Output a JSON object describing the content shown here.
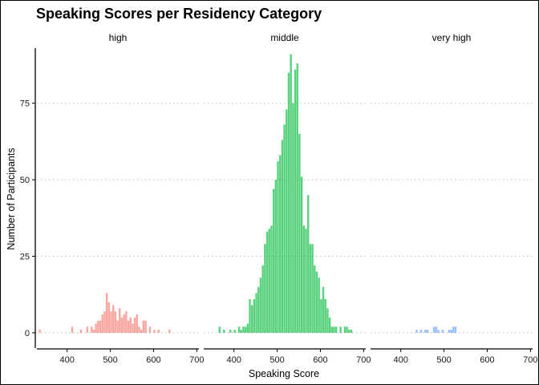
{
  "chart_data": {
    "type": "bar",
    "title": "Speaking Scores per Residency Category",
    "xlabel": "Speaking Score",
    "ylabel": "Number of Participants",
    "xlim": [
      330,
      705
    ],
    "ylim": [
      -5,
      93
    ],
    "x_ticks": [
      400,
      500,
      600,
      700
    ],
    "y_ticks": [
      0,
      25,
      50,
      75
    ],
    "grid": "horizontal dotted",
    "bin_width": 5,
    "panels": [
      {
        "name": "high",
        "color": "#F8766D",
        "bins": [
          [
            337,
            1
          ],
          [
            412,
            2
          ],
          [
            432,
            1
          ],
          [
            447,
            2
          ],
          [
            457,
            2
          ],
          [
            462,
            1
          ],
          [
            467,
            3
          ],
          [
            472,
            4
          ],
          [
            477,
            4
          ],
          [
            482,
            6
          ],
          [
            487,
            7
          ],
          [
            492,
            13
          ],
          [
            497,
            10
          ],
          [
            502,
            7
          ],
          [
            507,
            9
          ],
          [
            512,
            7
          ],
          [
            517,
            4
          ],
          [
            522,
            8
          ],
          [
            527,
            5
          ],
          [
            532,
            6
          ],
          [
            537,
            7
          ],
          [
            542,
            4
          ],
          [
            547,
            5
          ],
          [
            552,
            3
          ],
          [
            557,
            5
          ],
          [
            562,
            6
          ],
          [
            567,
            2
          ],
          [
            572,
            1
          ],
          [
            577,
            4
          ],
          [
            582,
            4
          ],
          [
            592,
            2
          ],
          [
            602,
            1
          ],
          [
            612,
            1
          ],
          [
            637,
            1
          ]
        ]
      },
      {
        "name": "middle",
        "color": "#00BA38",
        "bins": [
          [
            367,
            2
          ],
          [
            377,
            1
          ],
          [
            392,
            1
          ],
          [
            402,
            1
          ],
          [
            412,
            2
          ],
          [
            417,
            1
          ],
          [
            422,
            2
          ],
          [
            427,
            2
          ],
          [
            432,
            3
          ],
          [
            437,
            11
          ],
          [
            442,
            9
          ],
          [
            447,
            11
          ],
          [
            452,
            13
          ],
          [
            457,
            15
          ],
          [
            462,
            18
          ],
          [
            467,
            22
          ],
          [
            472,
            29
          ],
          [
            477,
            33
          ],
          [
            482,
            34
          ],
          [
            487,
            35
          ],
          [
            492,
            47
          ],
          [
            497,
            50
          ],
          [
            502,
            56
          ],
          [
            507,
            58
          ],
          [
            512,
            63
          ],
          [
            517,
            68
          ],
          [
            522,
            73
          ],
          [
            527,
            85
          ],
          [
            532,
            91
          ],
          [
            537,
            75
          ],
          [
            542,
            86
          ],
          [
            547,
            88
          ],
          [
            552,
            65
          ],
          [
            557,
            51
          ],
          [
            562,
            35
          ],
          [
            567,
            34
          ],
          [
            572,
            45
          ],
          [
            577,
            29
          ],
          [
            582,
            29
          ],
          [
            587,
            22
          ],
          [
            592,
            20
          ],
          [
            597,
            18
          ],
          [
            602,
            11
          ],
          [
            607,
            15
          ],
          [
            612,
            11
          ],
          [
            617,
            8
          ],
          [
            622,
            5
          ],
          [
            627,
            2
          ],
          [
            632,
            2
          ],
          [
            637,
            2
          ],
          [
            647,
            2
          ],
          [
            657,
            2
          ],
          [
            662,
            2
          ],
          [
            667,
            1
          ],
          [
            672,
            1
          ]
        ]
      },
      {
        "name": "very high",
        "color": "#619CFF",
        "bins": [
          [
            437,
            1
          ],
          [
            447,
            1
          ],
          [
            457,
            1
          ],
          [
            462,
            1
          ],
          [
            477,
            2
          ],
          [
            482,
            2
          ],
          [
            487,
            1
          ],
          [
            497,
            1
          ],
          [
            512,
            1
          ],
          [
            517,
            1
          ],
          [
            522,
            2
          ],
          [
            527,
            2
          ]
        ]
      }
    ]
  }
}
